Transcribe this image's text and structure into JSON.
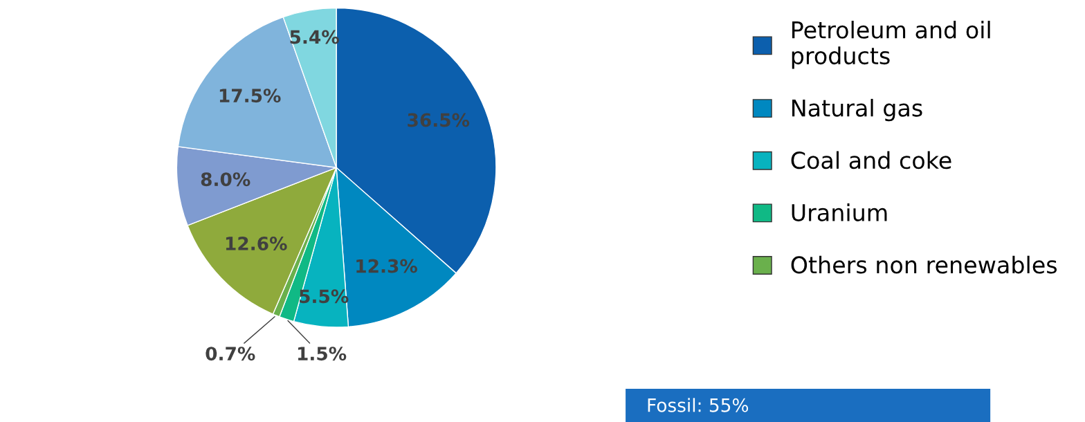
{
  "chart_data": {
    "type": "pie",
    "categories": [
      "Petroleum and oil products",
      "Natural gas",
      "Coal and coke",
      "Uranium",
      "Others non renewables",
      null,
      null,
      null,
      null
    ],
    "values": [
      36.5,
      12.3,
      5.5,
      1.5,
      0.7,
      12.6,
      8.0,
      17.5,
      5.4
    ],
    "value_labels": [
      "36.5%",
      "12.3%",
      "5.5%",
      "1.5%",
      "0.7%",
      "12.6%",
      "8.0%",
      "17.5%",
      "5.4%"
    ],
    "colors": [
      "#0c5fad",
      "#0088c0",
      "#07b3bf",
      "#10b985",
      "#6ab04c",
      "#8faa3c",
      "#7f9bd0",
      "#80b4dc",
      "#80d7e0"
    ],
    "legend": "right",
    "annotations": [
      "Fossil: 55%"
    ]
  }
}
